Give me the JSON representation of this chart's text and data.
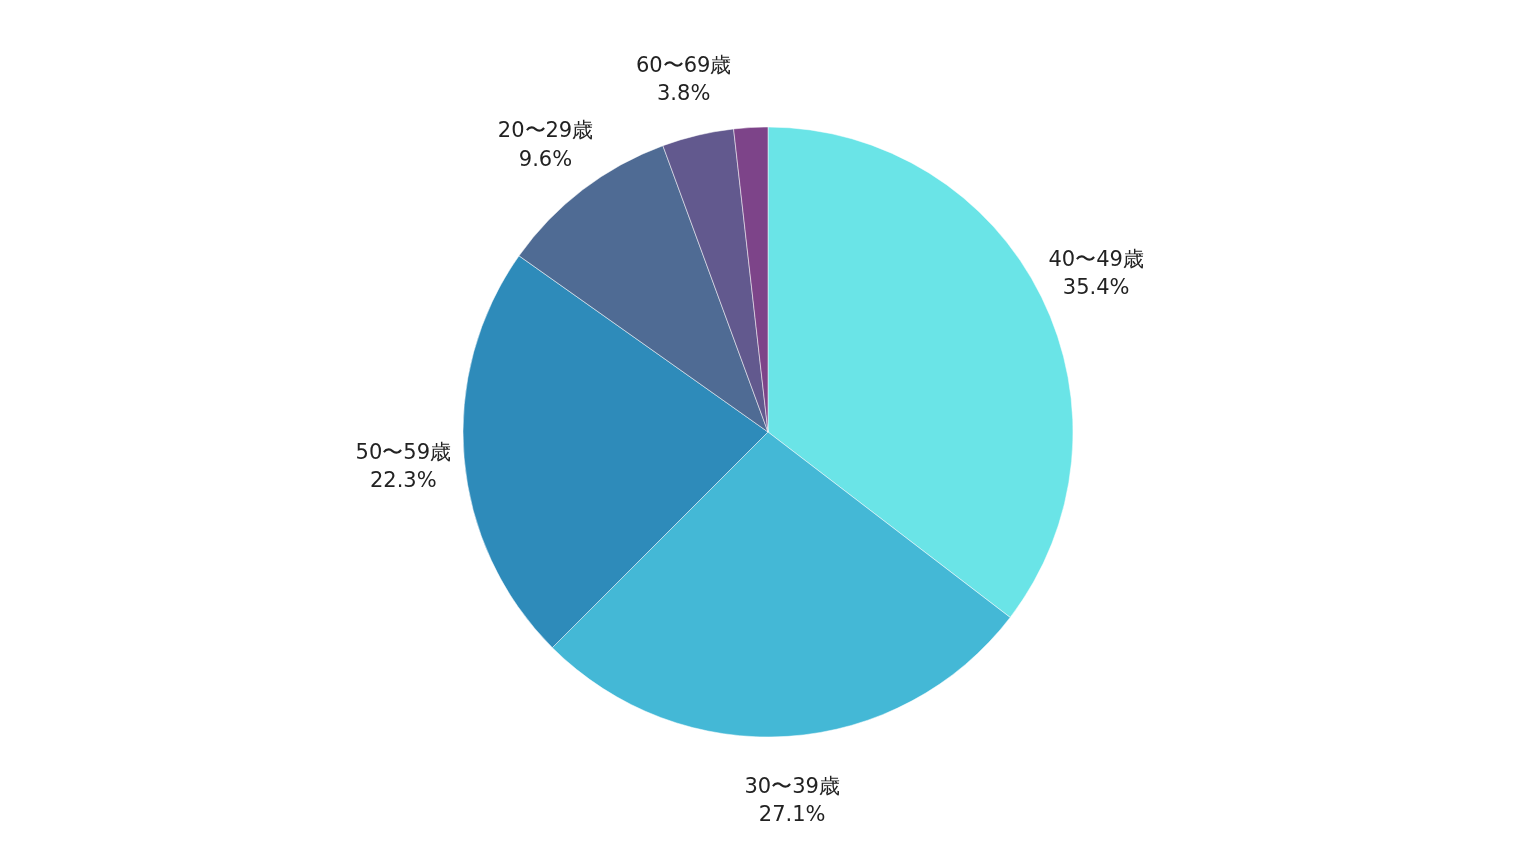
{
  "chart_data": {
    "type": "pie",
    "categories": [
      "40〜49歳",
      "30〜39歳",
      "50〜59歳",
      "20〜29歳",
      "60〜69歳",
      null
    ],
    "values": [
      35.4,
      27.1,
      22.3,
      9.6,
      3.8,
      1.8
    ],
    "value_labels": [
      "35.4%",
      "27.1%",
      "22.3%",
      "9.6%",
      "3.8%",
      null
    ],
    "colors": [
      "#6ae4e7",
      "#44b8d6",
      "#2e8bba",
      "#4f6b94",
      "#62598e",
      "#7d4489"
    ]
  }
}
